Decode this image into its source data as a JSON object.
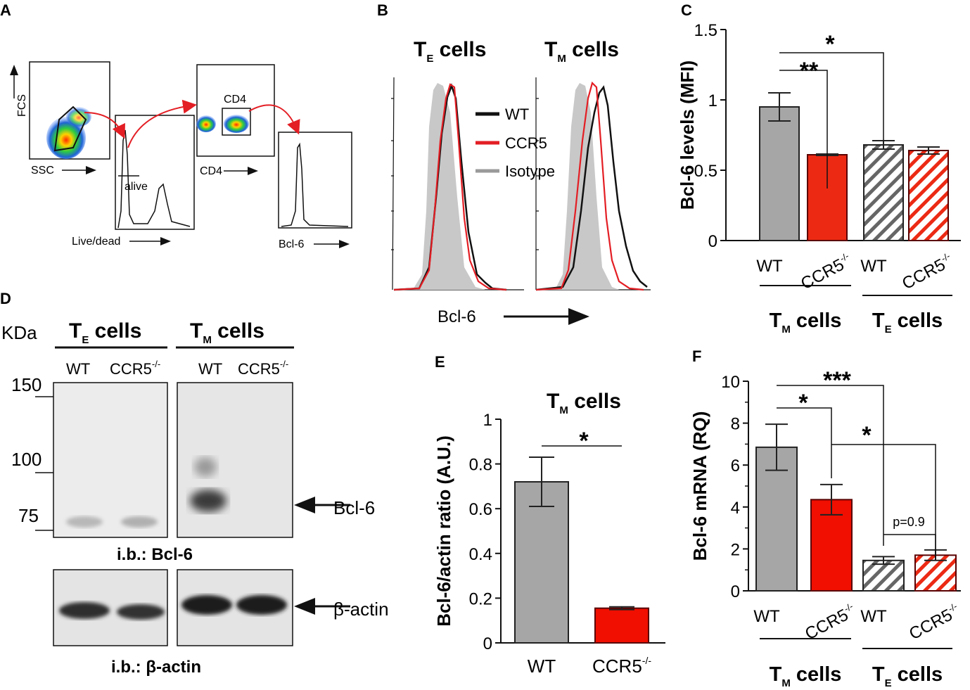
{
  "colors": {
    "gray": "#a6a6a6",
    "red": "#ec2a14",
    "red_solid": "#f00f00",
    "black": "#111111",
    "isotype": "#c8c8c8",
    "flow_red": "#e31e24"
  },
  "panels": {
    "A": "A",
    "B": "B",
    "C": "C",
    "D": "D",
    "E": "E",
    "F": "F"
  },
  "panelA": {
    "fcs": "FCS",
    "ssc": "SSC",
    "live_dead": "Live/dead",
    "alive": "alive",
    "cd4_gate": "CD4",
    "cd4_axis": "CD4",
    "bcl6": "Bcl-6"
  },
  "panelB": {
    "te_title": "T",
    "te_sub": "E",
    "te_suffix": " cells",
    "tm_title": "T",
    "tm_sub": "M",
    "tm_suffix": " cells",
    "legend": [
      {
        "label": "WT",
        "color": "#111111"
      },
      {
        "label": "CCR5",
        "color": "#e31e24"
      },
      {
        "label": "Isotype",
        "color": "#9a9a9a"
      }
    ],
    "xlabel": "Bcl-6"
  },
  "panelD": {
    "kda": "KDa",
    "te_title": "T",
    "te_sub": "E",
    "te_suffix": " cells",
    "tm_title": "T",
    "tm_sub": "M",
    "tm_suffix": " cells",
    "lanes": [
      "WT",
      "CCR5",
      "WT",
      "CCR5"
    ],
    "lane_sup": "-/-",
    "markers": [
      "150",
      "100",
      "75"
    ],
    "bcl6_arrow": "Bcl-6",
    "actin_arrow": "β-actin",
    "ib_bcl6": "i.b.: Bcl-6",
    "ib_actin": "i.b.: β-actin"
  },
  "chart_data": [
    {
      "id": "C",
      "type": "bar",
      "ylabel": "Bcl-6 levels (MFI)",
      "ylim": [
        0,
        1.5
      ],
      "yticks": [
        "0",
        "0.5",
        "1",
        "1.5"
      ],
      "categories": [
        "WT",
        "CCR5",
        "WT",
        "CCR5"
      ],
      "category_sup": [
        "",
        "-/-",
        "",
        "-/-"
      ],
      "values": [
        0.95,
        0.61,
        0.68,
        0.64
      ],
      "errors": [
        0.1,
        0.005,
        0.03,
        0.025
      ],
      "styles": [
        "gray",
        "red",
        "gray-hatch",
        "red-hatch"
      ],
      "groups": [
        {
          "label": "T",
          "sub": "M",
          "suffix": " cells"
        },
        {
          "label": "T",
          "sub": "E",
          "suffix": " cells"
        }
      ],
      "significance": [
        {
          "label": "**",
          "from": 0,
          "to": 1
        },
        {
          "label": "*",
          "from": 0,
          "to": 2
        }
      ]
    },
    {
      "id": "E",
      "type": "bar",
      "title": "T",
      "title_sub": "M",
      "title_suffix": " cells",
      "ylabel": "Bcl-6/actin ratio  (A.U.)",
      "ylim": [
        0,
        1
      ],
      "yticks": [
        "0",
        "0.2",
        "0.4",
        "0.6",
        "0.8",
        "1"
      ],
      "categories": [
        "WT",
        "CCR5"
      ],
      "category_sup": [
        "",
        "-/-"
      ],
      "values": [
        0.72,
        0.155
      ],
      "errors": [
        0.11,
        0.006
      ],
      "styles": [
        "gray",
        "red-solid"
      ],
      "significance": [
        {
          "label": "*",
          "from": 0,
          "to": 1
        }
      ]
    },
    {
      "id": "F",
      "type": "bar",
      "ylabel": "Bcl-6 mRNA (RQ)",
      "ylim": [
        0,
        10
      ],
      "yticks": [
        "0",
        "2",
        "4",
        "6",
        "8",
        "10"
      ],
      "categories": [
        "WT",
        "CCR5",
        "WT",
        "CCR5"
      ],
      "category_sup": [
        "",
        "-/-",
        "",
        "-/-"
      ],
      "values": [
        6.85,
        4.35,
        1.45,
        1.7
      ],
      "errors": [
        1.1,
        0.72,
        0.18,
        0.25
      ],
      "styles": [
        "gray",
        "red-solid",
        "gray-hatch",
        "red-hatch"
      ],
      "groups": [
        {
          "label": "T",
          "sub": "M",
          "suffix": " cells"
        },
        {
          "label": "T",
          "sub": "E",
          "suffix": " cells"
        }
      ],
      "significance": [
        {
          "label": "***",
          "from": 0,
          "to": 2
        },
        {
          "label": "*",
          "from": 0,
          "to": 1
        },
        {
          "label": "*",
          "from": 1,
          "to": 3
        },
        {
          "label": "p=0.9",
          "from": 2,
          "to": 3
        }
      ]
    }
  ]
}
